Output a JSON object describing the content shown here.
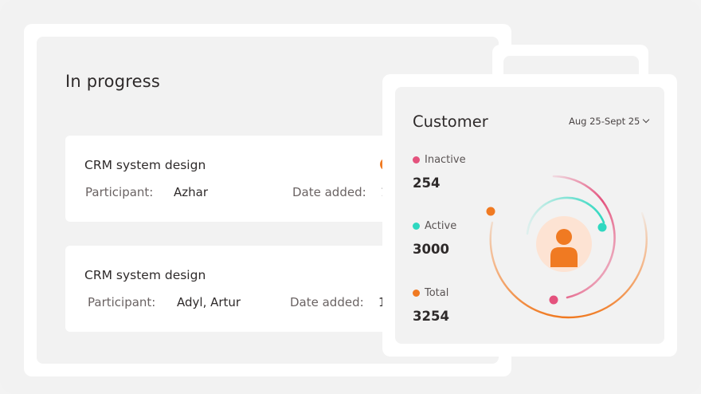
{
  "progress": {
    "title": "In progress",
    "tasks": [
      {
        "title": "CRM system design",
        "participant_label": "Participant:",
        "participant": "Azhar",
        "date_label": "Date added:",
        "date_value": "1"
      },
      {
        "title": "CRM system design",
        "participant_label": "Participant:",
        "participant": "Adyl, Artur",
        "date_label": "Date added:",
        "date_value": "1"
      }
    ]
  },
  "customer": {
    "title": "Customer",
    "date_range": "Aug 25-Sept 25",
    "stats": [
      {
        "label": "Inactive",
        "value": "254",
        "color": "#e4527d"
      },
      {
        "label": "Active",
        "value": "3000",
        "color": "#2fd8c0"
      },
      {
        "label": "Total",
        "value": "3254",
        "color": "#f07a22"
      }
    ]
  },
  "colors": {
    "accent_orange": "#f07a22",
    "inactive_pink": "#e4527d",
    "active_teal": "#2fd8c0",
    "avatar_bg": "#fde3d3"
  },
  "icons": [
    "user-avatar-icon",
    "chevron-down-icon"
  ]
}
